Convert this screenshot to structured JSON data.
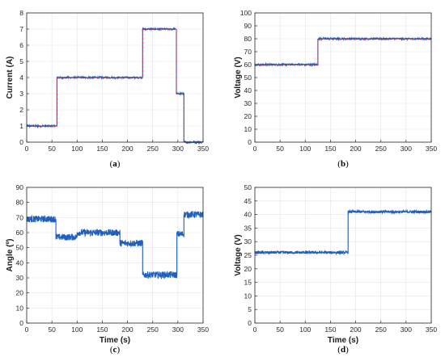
{
  "chart_data": [
    {
      "type": "line",
      "caption": "(a)",
      "xlabel": "",
      "ylabel": "Current (A)",
      "xlim": [
        0,
        350
      ],
      "ylim": [
        0,
        8
      ],
      "xticks": [
        0,
        50,
        100,
        150,
        200,
        250,
        300,
        350
      ],
      "yticks": [
        0,
        1,
        2,
        3,
        4,
        5,
        6,
        7,
        8
      ],
      "grid": true,
      "noise": 0.05,
      "series": [
        {
          "color": "#1f5fbf",
          "style": "measured",
          "x": [
            0,
            60,
            60,
            230,
            230,
            297,
            297,
            312,
            312,
            350
          ],
          "y": [
            1.0,
            1.0,
            4.0,
            4.0,
            7.0,
            7.0,
            3.0,
            3.0,
            0.0,
            0.0
          ]
        },
        {
          "color": "#d62728",
          "style": "reference-dashed",
          "x": [
            0,
            60,
            60,
            230,
            230,
            297,
            297,
            312,
            312,
            350
          ],
          "y": [
            1.0,
            1.0,
            4.0,
            4.0,
            7.0,
            7.0,
            3.0,
            3.0,
            0.0,
            0.0
          ]
        }
      ]
    },
    {
      "type": "line",
      "caption": "(b)",
      "xlabel": "",
      "ylabel": "Voltage (V)",
      "xlim": [
        0,
        350
      ],
      "ylim": [
        0,
        100
      ],
      "xticks": [
        0,
        50,
        100,
        150,
        200,
        250,
        300,
        350
      ],
      "yticks": [
        0,
        10,
        20,
        30,
        40,
        50,
        60,
        70,
        80,
        90,
        100
      ],
      "grid": true,
      "noise": 0.7,
      "series": [
        {
          "color": "#1f5fbf",
          "style": "measured",
          "x": [
            0,
            125,
            125,
            350
          ],
          "y": [
            60,
            60,
            80,
            80
          ]
        },
        {
          "color": "#d62728",
          "style": "reference-dashed",
          "x": [
            0,
            125,
            125,
            350
          ],
          "y": [
            60,
            60,
            80,
            80
          ]
        }
      ]
    },
    {
      "type": "line",
      "caption": "(c)",
      "xlabel": "Time (s)",
      "ylabel": "Angle (º)",
      "xlim": [
        0,
        350
      ],
      "ylim": [
        0,
        90
      ],
      "xticks": [
        0,
        50,
        100,
        150,
        200,
        250,
        300,
        350
      ],
      "yticks": [
        0,
        10,
        20,
        30,
        40,
        50,
        60,
        70,
        80,
        90
      ],
      "grid": true,
      "noise": 2.2,
      "series": [
        {
          "color": "#1f5fbf",
          "style": "measured",
          "x": [
            0,
            58,
            58,
            100,
            100,
            185,
            185,
            230,
            230,
            298,
            298,
            312,
            312,
            350
          ],
          "y": [
            69,
            69,
            57,
            57,
            60,
            60,
            53,
            53,
            32,
            32,
            59,
            59,
            72,
            72
          ]
        }
      ]
    },
    {
      "type": "line",
      "caption": "(d)",
      "xlabel": "Time (s)",
      "ylabel": "Voltage (V)",
      "xlim": [
        0,
        350
      ],
      "ylim": [
        0,
        50
      ],
      "xticks": [
        0,
        50,
        100,
        150,
        200,
        250,
        300,
        350
      ],
      "yticks": [
        0,
        5,
        10,
        15,
        20,
        25,
        30,
        35,
        40,
        45,
        50
      ],
      "grid": true,
      "noise": 0.5,
      "series": [
        {
          "color": "#1f5fbf",
          "style": "measured",
          "x": [
            0,
            185,
            185,
            350
          ],
          "y": [
            26,
            26,
            41,
            41
          ]
        }
      ]
    }
  ]
}
